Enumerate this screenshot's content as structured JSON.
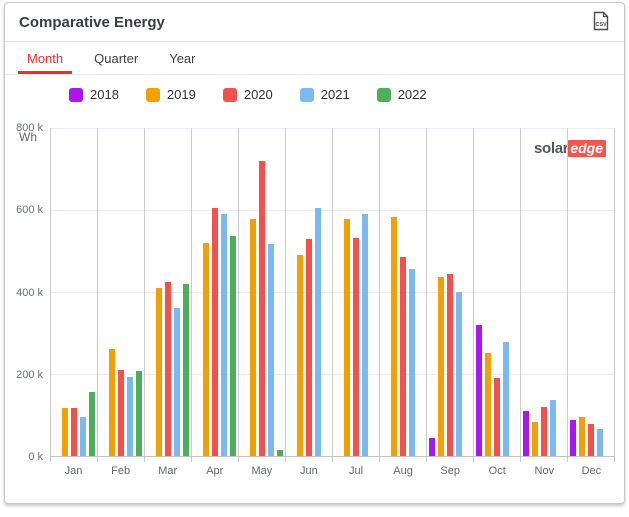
{
  "header": {
    "title": "Comparative Energy"
  },
  "tabs": [
    {
      "label": "Month",
      "active": true
    },
    {
      "label": "Quarter",
      "active": false
    },
    {
      "label": "Year",
      "active": false
    }
  ],
  "branding": {
    "logo_part1": "solar",
    "logo_part2": "edge"
  },
  "icons": {
    "csv_export": "csv-file-icon",
    "csv_text": "CSV"
  },
  "chart_data": {
    "type": "bar",
    "title": "Comparative Energy",
    "unit_label": "Wh",
    "categories": [
      "Jan",
      "Feb",
      "Mar",
      "Apr",
      "May",
      "Jun",
      "Jul",
      "Aug",
      "Sep",
      "Oct",
      "Nov",
      "Dec"
    ],
    "series": [
      {
        "name": "2018",
        "color": "#a816f0",
        "values": [
          null,
          null,
          null,
          null,
          null,
          null,
          null,
          null,
          45,
          320,
          110,
          88
        ]
      },
      {
        "name": "2019",
        "color": "#f2a105",
        "values": [
          118,
          262,
          410,
          520,
          577,
          490,
          578,
          583,
          437,
          251,
          84,
          95
        ]
      },
      {
        "name": "2020",
        "color": "#f4514e",
        "values": [
          116,
          210,
          425,
          605,
          720,
          530,
          531,
          485,
          445,
          191,
          120,
          77
        ]
      },
      {
        "name": "2021",
        "color": "#7cb9ee",
        "values": [
          95,
          193,
          362,
          590,
          517,
          604,
          590,
          455,
          400,
          278,
          137,
          67
        ]
      },
      {
        "name": "2022",
        "color": "#4fae5c",
        "values": [
          155,
          208,
          420,
          537,
          14,
          null,
          null,
          null,
          null,
          null,
          null,
          null
        ]
      }
    ],
    "value_unit": "kWh-displayed-as-k-Wh",
    "ylim": [
      0,
      800
    ],
    "ytick_labels": [
      "800 k",
      "600 k",
      "400 k",
      "200 k",
      "0 k"
    ],
    "grid": true,
    "legend_position": "top-left"
  }
}
